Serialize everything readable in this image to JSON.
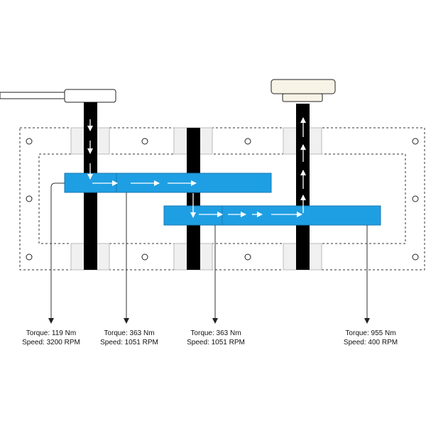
{
  "colors": {
    "gear": "#1f9fe3",
    "gear_border": "#1a78b0",
    "shaft": "#000000",
    "bearing": "#f0f0f0",
    "output_cap": "#f7f3e6",
    "housing_stroke": "#333333",
    "arrow": "#ffffff",
    "leader": "#333333"
  },
  "icons": {
    "flow_arrow": "white-arrow",
    "bolt_hole": "circle",
    "leader_arrow": "arrowhead-down"
  },
  "labels": [
    {
      "torque": "Torque: 119 Nm",
      "speed": "Speed: 3200 RPM"
    },
    {
      "torque": "Torque: 363 Nm",
      "speed": "Speed: 1051 RPM"
    },
    {
      "torque": "Torque: 363 Nm",
      "speed": "Speed: 1051 RPM"
    },
    {
      "torque": "Torque: 955 Nm",
      "speed": "Speed: 400 RPM"
    }
  ]
}
